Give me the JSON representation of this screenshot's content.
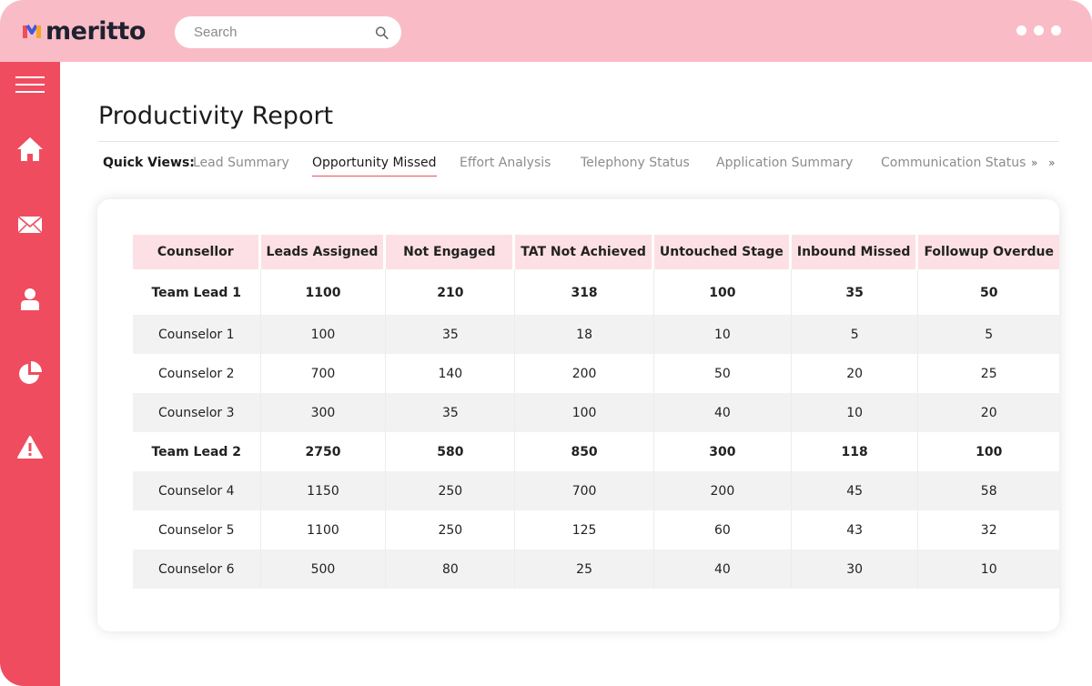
{
  "brand": {
    "name": "meritto"
  },
  "search": {
    "placeholder": "Search"
  },
  "sidebar": {
    "items": [
      {
        "icon": "menu-icon"
      },
      {
        "icon": "home-icon"
      },
      {
        "icon": "mail-icon"
      },
      {
        "icon": "user-icon"
      },
      {
        "icon": "pie-chart-icon"
      },
      {
        "icon": "alert-icon"
      }
    ]
  },
  "page": {
    "title": "Productivity Report"
  },
  "quick_views": {
    "label": "Quick Views:",
    "items": [
      {
        "label": "Lead Summary",
        "active": false
      },
      {
        "label": "Opportunity Missed",
        "active": true
      },
      {
        "label": "Effort Analysis",
        "active": false
      },
      {
        "label": "Telephony Status",
        "active": false
      },
      {
        "label": "Application Summary",
        "active": false
      },
      {
        "label": "Communication Status",
        "active": false
      }
    ],
    "more": "» »"
  },
  "table": {
    "headers": [
      "Counsellor",
      "Leads Assigned",
      "Not Engaged",
      "TAT Not Achieved",
      "Untouched Stage",
      "Inbound Missed",
      "Followup Overdue"
    ],
    "rows": [
      [
        "Team Lead 1",
        "1100",
        "210",
        "318",
        "100",
        "35",
        "50"
      ],
      [
        "Counselor 1",
        "100",
        "35",
        "18",
        "10",
        "5",
        "5"
      ],
      [
        "Counselor  2",
        "700",
        "140",
        "200",
        "50",
        "20",
        "25"
      ],
      [
        "Counselor  3",
        "300",
        "35",
        "100",
        "40",
        "10",
        "20"
      ],
      [
        "Team Lead 2",
        "2750",
        "580",
        "850",
        "300",
        "118",
        "100"
      ],
      [
        "Counselor 4",
        "1150",
        "250",
        "700",
        "200",
        "45",
        "58"
      ],
      [
        "Counselor  5",
        "1100",
        "250",
        "125",
        "60",
        "43",
        "32"
      ],
      [
        "Counselor  6",
        "500",
        "80",
        "25",
        "40",
        "30",
        "10"
      ]
    ]
  },
  "colors": {
    "topbar": "#f9bcc6",
    "sidebar": "#f04c5f",
    "header_cell": "#fde0e5",
    "accent": "#f04c5f"
  }
}
